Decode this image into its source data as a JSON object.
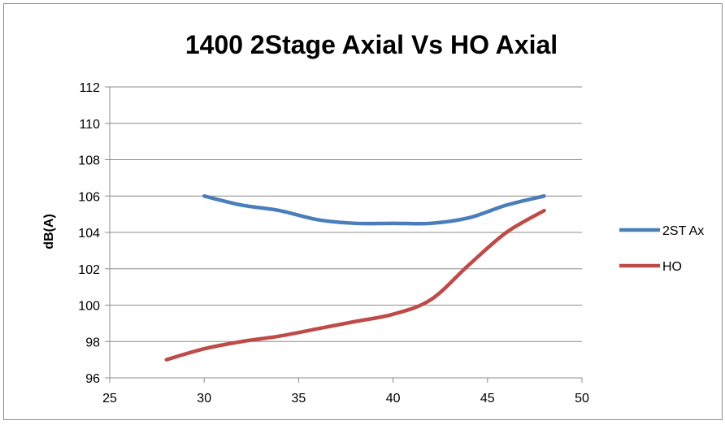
{
  "chart_data": {
    "type": "line",
    "title": "1400 2Stage Axial Vs HO Axial",
    "xlabel": "",
    "ylabel": "dB(A)",
    "xlim": [
      25,
      50
    ],
    "ylim": [
      96,
      112
    ],
    "x_ticks": [
      25,
      30,
      35,
      40,
      45,
      50
    ],
    "y_ticks": [
      96,
      98,
      100,
      102,
      104,
      106,
      108,
      110,
      112
    ],
    "grid": "horizontal",
    "legend_position": "right",
    "series": [
      {
        "name": "2ST Ax",
        "color": "#4a7ebb",
        "x": [
          30,
          32,
          34,
          36,
          38,
          40,
          42,
          44,
          46,
          48
        ],
        "y": [
          106,
          105.5,
          105.2,
          104.7,
          104.5,
          104.5,
          104.5,
          104.8,
          105.5,
          106
        ]
      },
      {
        "name": "HO",
        "color": "#be4b48",
        "x": [
          28,
          30,
          32,
          34,
          36,
          38,
          40,
          42,
          44,
          46,
          48
        ],
        "y": [
          97,
          97.6,
          98.0,
          98.3,
          98.7,
          99.1,
          99.5,
          100.3,
          102.2,
          104.0,
          105.2
        ]
      }
    ]
  }
}
